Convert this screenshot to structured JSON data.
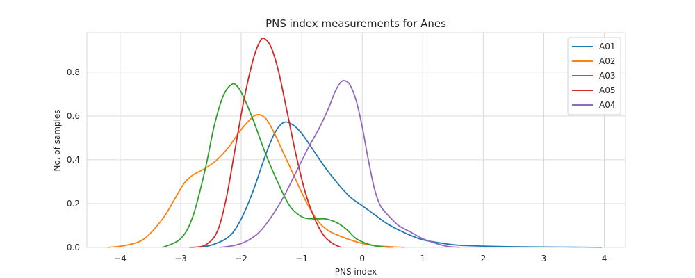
{
  "chart_data": {
    "type": "line",
    "title": "PNS index measurements for Anes",
    "xlabel": "PNS index",
    "ylabel": "No. of samples",
    "xlim": [
      -4.55,
      4.35
    ],
    "ylim": [
      0,
      0.98
    ],
    "xticks": [
      -4,
      -3,
      -2,
      -1,
      0,
      1,
      2,
      3,
      4
    ],
    "xtick_labels": [
      "−4",
      "−3",
      "−2",
      "−1",
      "0",
      "1",
      "2",
      "3",
      "4"
    ],
    "yticks": [
      0.0,
      0.2,
      0.4,
      0.6,
      0.8
    ],
    "ytick_labels": [
      "0.0",
      "0.2",
      "0.4",
      "0.6",
      "0.8"
    ],
    "grid": true,
    "legend_position": "top-right",
    "series": [
      {
        "name": "A01",
        "color": "#1f77b4",
        "points": [
          [
            -2.8,
            0.0
          ],
          [
            -2.5,
            0.01
          ],
          [
            -2.2,
            0.05
          ],
          [
            -2.0,
            0.13
          ],
          [
            -1.8,
            0.26
          ],
          [
            -1.6,
            0.42
          ],
          [
            -1.45,
            0.52
          ],
          [
            -1.3,
            0.57
          ],
          [
            -1.15,
            0.56
          ],
          [
            -1.0,
            0.52
          ],
          [
            -0.8,
            0.44
          ],
          [
            -0.6,
            0.36
          ],
          [
            -0.4,
            0.29
          ],
          [
            -0.2,
            0.23
          ],
          [
            0.0,
            0.19
          ],
          [
            0.2,
            0.15
          ],
          [
            0.4,
            0.11
          ],
          [
            0.6,
            0.08
          ],
          [
            0.8,
            0.055
          ],
          [
            1.0,
            0.035
          ],
          [
            1.3,
            0.02
          ],
          [
            1.6,
            0.01
          ],
          [
            2.0,
            0.006
          ],
          [
            2.5,
            0.003
          ],
          [
            3.0,
            0.002
          ],
          [
            3.5,
            0.001
          ],
          [
            3.95,
            0.0
          ]
        ]
      },
      {
        "name": "A02",
        "color": "#ff7f0e",
        "points": [
          [
            -4.2,
            0.0
          ],
          [
            -3.9,
            0.01
          ],
          [
            -3.6,
            0.04
          ],
          [
            -3.3,
            0.13
          ],
          [
            -3.1,
            0.22
          ],
          [
            -2.95,
            0.29
          ],
          [
            -2.8,
            0.33
          ],
          [
            -2.6,
            0.36
          ],
          [
            -2.4,
            0.4
          ],
          [
            -2.2,
            0.46
          ],
          [
            -2.05,
            0.52
          ],
          [
            -1.9,
            0.57
          ],
          [
            -1.75,
            0.605
          ],
          [
            -1.6,
            0.59
          ],
          [
            -1.45,
            0.52
          ],
          [
            -1.3,
            0.43
          ],
          [
            -1.15,
            0.34
          ],
          [
            -1.0,
            0.25
          ],
          [
            -0.85,
            0.17
          ],
          [
            -0.7,
            0.11
          ],
          [
            -0.55,
            0.075
          ],
          [
            -0.35,
            0.05
          ],
          [
            -0.15,
            0.03
          ],
          [
            0.05,
            0.015
          ],
          [
            0.3,
            0.006
          ],
          [
            0.7,
            0.0
          ]
        ]
      },
      {
        "name": "A03",
        "color": "#2ca02c",
        "points": [
          [
            -3.3,
            0.0
          ],
          [
            -3.0,
            0.04
          ],
          [
            -2.8,
            0.14
          ],
          [
            -2.6,
            0.35
          ],
          [
            -2.45,
            0.55
          ],
          [
            -2.3,
            0.69
          ],
          [
            -2.15,
            0.745
          ],
          [
            -2.05,
            0.73
          ],
          [
            -1.95,
            0.68
          ],
          [
            -1.8,
            0.58
          ],
          [
            -1.6,
            0.43
          ],
          [
            -1.4,
            0.3
          ],
          [
            -1.2,
            0.19
          ],
          [
            -1.0,
            0.14
          ],
          [
            -0.8,
            0.13
          ],
          [
            -0.6,
            0.13
          ],
          [
            -0.4,
            0.11
          ],
          [
            -0.25,
            0.08
          ],
          [
            -0.1,
            0.04
          ],
          [
            0.1,
            0.015
          ],
          [
            0.3,
            0.003
          ],
          [
            0.5,
            0.0
          ]
        ]
      },
      {
        "name": "A05",
        "color": "#d62728",
        "points": [
          [
            -2.85,
            0.0
          ],
          [
            -2.6,
            0.01
          ],
          [
            -2.4,
            0.07
          ],
          [
            -2.25,
            0.22
          ],
          [
            -2.1,
            0.45
          ],
          [
            -1.95,
            0.68
          ],
          [
            -1.8,
            0.86
          ],
          [
            -1.68,
            0.945
          ],
          [
            -1.6,
            0.95
          ],
          [
            -1.5,
            0.91
          ],
          [
            -1.38,
            0.8
          ],
          [
            -1.25,
            0.63
          ],
          [
            -1.1,
            0.43
          ],
          [
            -0.95,
            0.26
          ],
          [
            -0.8,
            0.14
          ],
          [
            -0.65,
            0.06
          ],
          [
            -0.5,
            0.02
          ],
          [
            -0.35,
            0.0
          ]
        ]
      },
      {
        "name": "A04",
        "color": "#9467bd",
        "points": [
          [
            -2.35,
            0.0
          ],
          [
            -2.1,
            0.01
          ],
          [
            -1.9,
            0.03
          ],
          [
            -1.7,
            0.07
          ],
          [
            -1.5,
            0.14
          ],
          [
            -1.3,
            0.23
          ],
          [
            -1.1,
            0.34
          ],
          [
            -0.9,
            0.45
          ],
          [
            -0.7,
            0.55
          ],
          [
            -0.55,
            0.64
          ],
          [
            -0.45,
            0.71
          ],
          [
            -0.35,
            0.755
          ],
          [
            -0.28,
            0.76
          ],
          [
            -0.2,
            0.74
          ],
          [
            -0.1,
            0.67
          ],
          [
            0.0,
            0.55
          ],
          [
            0.1,
            0.4
          ],
          [
            0.2,
            0.27
          ],
          [
            0.3,
            0.19
          ],
          [
            0.45,
            0.14
          ],
          [
            0.6,
            0.1
          ],
          [
            0.8,
            0.07
          ],
          [
            1.0,
            0.04
          ],
          [
            1.2,
            0.02
          ],
          [
            1.4,
            0.005
          ],
          [
            1.6,
            0.0
          ]
        ]
      }
    ]
  }
}
